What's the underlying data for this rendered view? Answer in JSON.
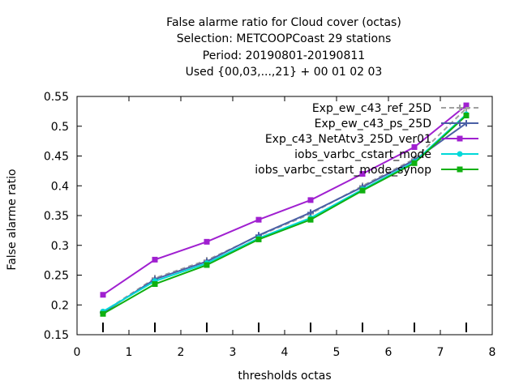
{
  "chart_data": {
    "type": "line",
    "title": [
      "False alarme ratio  for Cloud cover (octas)",
      "Selection: METCOOPCoast     29 stations",
      "Period: 20190801-20190811",
      "Used {00,03,...,21} + 00 01 02 03"
    ],
    "xlabel": "thresholds octas",
    "ylabel": "False alarme ratio",
    "xlim": [
      0,
      8
    ],
    "ylim": [
      0.15,
      0.55
    ],
    "xticks": [
      "0",
      "1",
      "2",
      "3",
      "4",
      "5",
      "6",
      "7",
      "8"
    ],
    "yticks": [
      "0.15",
      "0.2",
      "0.25",
      "0.3",
      "0.35",
      "0.4",
      "0.45",
      "0.5",
      "0.55"
    ],
    "legend_position": "top-right",
    "x": [
      0.5,
      1.5,
      2.5,
      3.5,
      4.5,
      5.5,
      6.5,
      7.5
    ],
    "series": [
      {
        "name": "Exp_ew_c43_ref_25D",
        "color": "#a0a0a0",
        "marker": "cross",
        "dash": "6,4",
        "values": [
          0.188,
          0.245,
          0.275,
          0.316,
          0.353,
          0.4,
          0.445,
          0.53
        ]
      },
      {
        "name": "Exp_ew_c43_ps_25D",
        "color": "#4a5fa5",
        "marker": "cross",
        "dash": "",
        "values": [
          0.187,
          0.243,
          0.273,
          0.317,
          0.355,
          0.398,
          0.443,
          0.505
        ]
      },
      {
        "name": "Exp_c43_NetAtv3_25D_ver01",
        "color": "#a020d0",
        "marker": "square",
        "dash": "",
        "values": [
          0.217,
          0.276,
          0.306,
          0.343,
          0.376,
          0.42,
          0.465,
          0.535
        ]
      },
      {
        "name": "iobs_varbc_cstart_mode",
        "color": "#00d8d8",
        "marker": "circle",
        "dash": "",
        "values": [
          0.189,
          0.24,
          0.27,
          0.312,
          0.346,
          0.394,
          0.44,
          0.52
        ]
      },
      {
        "name": "iobs_varbc_cstart_mode_synop",
        "color": "#10b010",
        "marker": "square",
        "dash": "",
        "values": [
          0.185,
          0.235,
          0.267,
          0.31,
          0.343,
          0.392,
          0.438,
          0.518
        ]
      }
    ],
    "count_ticks_at": [
      0.5,
      1.5,
      2.5,
      3.5,
      4.5,
      5.5,
      6.5,
      7.5
    ]
  }
}
